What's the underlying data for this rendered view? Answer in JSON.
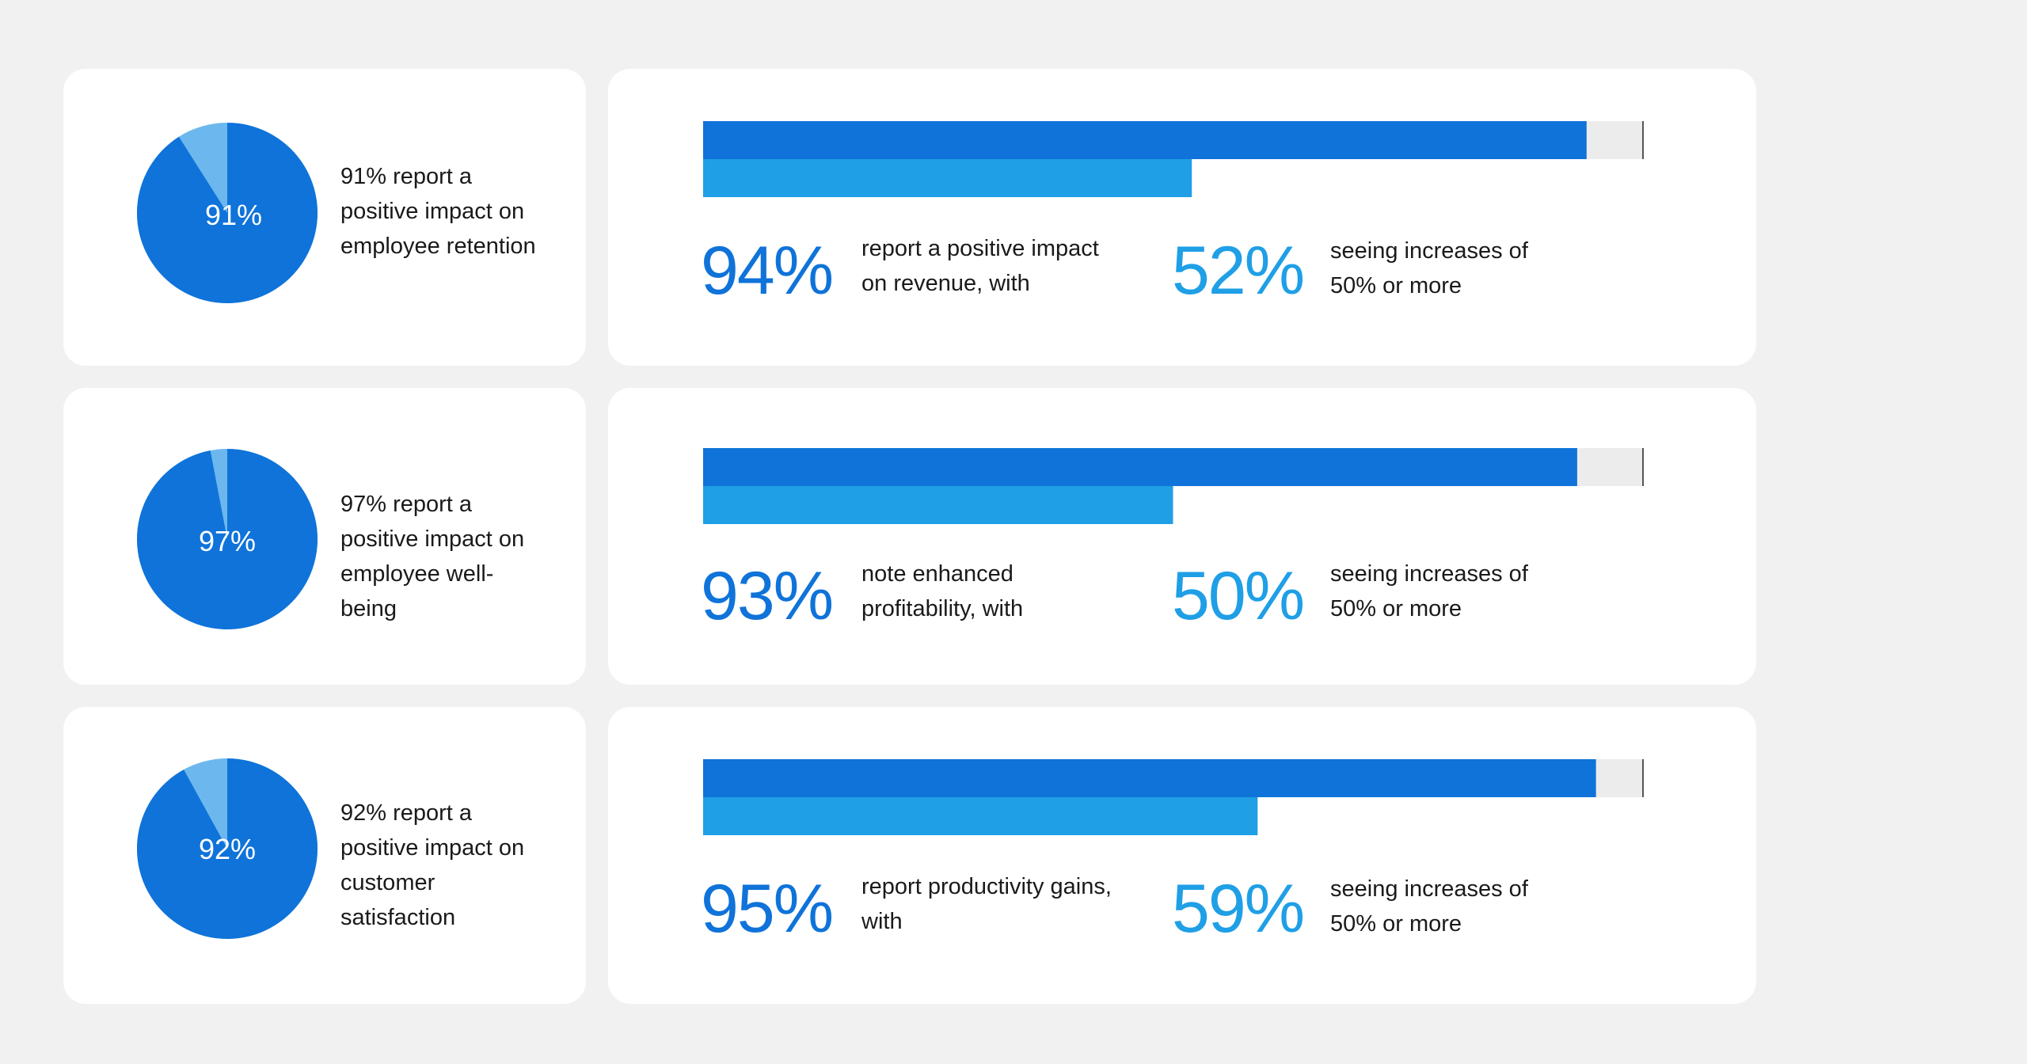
{
  "colors": {
    "background": "#f1f1f1",
    "card": "#ffffff",
    "primary_blue": "#0f73d9",
    "secondary_blue": "#1f9fe6",
    "pie_remainder": "#6cb8ee",
    "bar_track": "#ececec",
    "text": "#1a1a1a"
  },
  "chart_data": [
    {
      "type": "pie",
      "label": "91%",
      "value": 91,
      "description": "91% report a positive impact on employee retention"
    },
    {
      "type": "bar",
      "values": [
        94,
        52
      ],
      "xlim": [
        0,
        100
      ],
      "primary": {
        "value_label": "94%",
        "description": "report a positive impact on revenue, with"
      },
      "secondary": {
        "value_label": "52%",
        "description": "seeing increases of 50% or more"
      }
    },
    {
      "type": "pie",
      "label": "97%",
      "value": 97,
      "description": "97% report a positive impact on employee well-being"
    },
    {
      "type": "bar",
      "values": [
        93,
        50
      ],
      "xlim": [
        0,
        100
      ],
      "primary": {
        "value_label": "93%",
        "description": "note enhanced profitability, with"
      },
      "secondary": {
        "value_label": "50%",
        "description": "seeing increases of 50% or more"
      }
    },
    {
      "type": "pie",
      "label": "92%",
      "value": 92,
      "description": "92% report a positive impact on customer satisfaction"
    },
    {
      "type": "bar",
      "values": [
        95,
        59
      ],
      "xlim": [
        0,
        100
      ],
      "primary": {
        "value_label": "95%",
        "description": "report productivity gains, with"
      },
      "secondary": {
        "value_label": "59%",
        "description": "seeing increases of 50% or more"
      }
    }
  ]
}
